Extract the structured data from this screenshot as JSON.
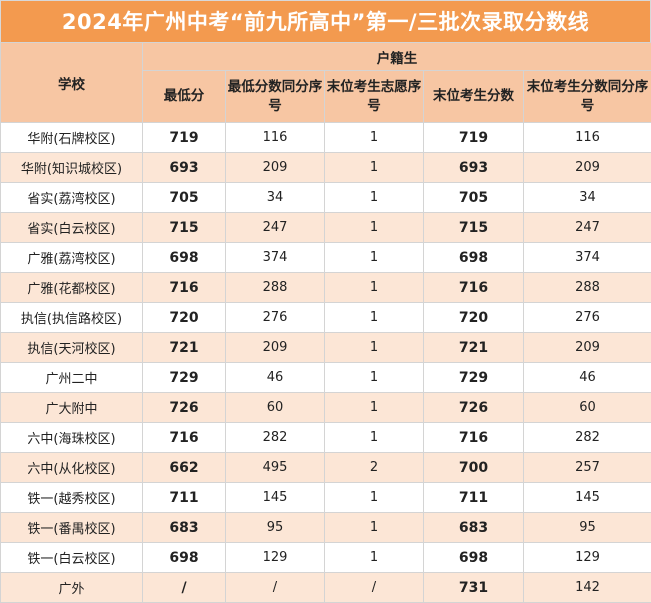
{
  "title": "2024年广州中考“前九所高中”第一/三批次录取分数线",
  "header": {
    "school": "学校",
    "group": "户籍生",
    "columns": [
      "最低分",
      "最低分数同分序号",
      "末位考生志愿序号",
      "末位考生分数",
      "末位考生分数同分序号"
    ]
  },
  "rows": [
    {
      "school": "华附(石牌校区)",
      "min": "719",
      "min_seq": "116",
      "pref": "1",
      "last": "719",
      "last_seq": "116"
    },
    {
      "school": "华附(知识城校区)",
      "min": "693",
      "min_seq": "209",
      "pref": "1",
      "last": "693",
      "last_seq": "209"
    },
    {
      "school": "省实(荔湾校区)",
      "min": "705",
      "min_seq": "34",
      "pref": "1",
      "last": "705",
      "last_seq": "34"
    },
    {
      "school": "省实(白云校区)",
      "min": "715",
      "min_seq": "247",
      "pref": "1",
      "last": "715",
      "last_seq": "247"
    },
    {
      "school": "广雅(荔湾校区)",
      "min": "698",
      "min_seq": "374",
      "pref": "1",
      "last": "698",
      "last_seq": "374"
    },
    {
      "school": "广雅(花都校区)",
      "min": "716",
      "min_seq": "288",
      "pref": "1",
      "last": "716",
      "last_seq": "288"
    },
    {
      "school": "执信(执信路校区)",
      "min": "720",
      "min_seq": "276",
      "pref": "1",
      "last": "720",
      "last_seq": "276"
    },
    {
      "school": "执信(天河校区)",
      "min": "721",
      "min_seq": "209",
      "pref": "1",
      "last": "721",
      "last_seq": "209"
    },
    {
      "school": "广州二中",
      "min": "729",
      "min_seq": "46",
      "pref": "1",
      "last": "729",
      "last_seq": "46"
    },
    {
      "school": "广大附中",
      "min": "726",
      "min_seq": "60",
      "pref": "1",
      "last": "726",
      "last_seq": "60"
    },
    {
      "school": "六中(海珠校区)",
      "min": "716",
      "min_seq": "282",
      "pref": "1",
      "last": "716",
      "last_seq": "282"
    },
    {
      "school": "六中(从化校区)",
      "min": "662",
      "min_seq": "495",
      "pref": "2",
      "last": "700",
      "last_seq": "257"
    },
    {
      "school": "铁一(越秀校区)",
      "min": "711",
      "min_seq": "145",
      "pref": "1",
      "last": "711",
      "last_seq": "145"
    },
    {
      "school": "铁一(番禺校区)",
      "min": "683",
      "min_seq": "95",
      "pref": "1",
      "last": "683",
      "last_seq": "95"
    },
    {
      "school": "铁一(白云校区)",
      "min": "698",
      "min_seq": "129",
      "pref": "1",
      "last": "698",
      "last_seq": "129"
    },
    {
      "school": "广外",
      "min": "/",
      "min_seq": "/",
      "pref": "/",
      "last": "731",
      "last_seq": "142"
    }
  ]
}
